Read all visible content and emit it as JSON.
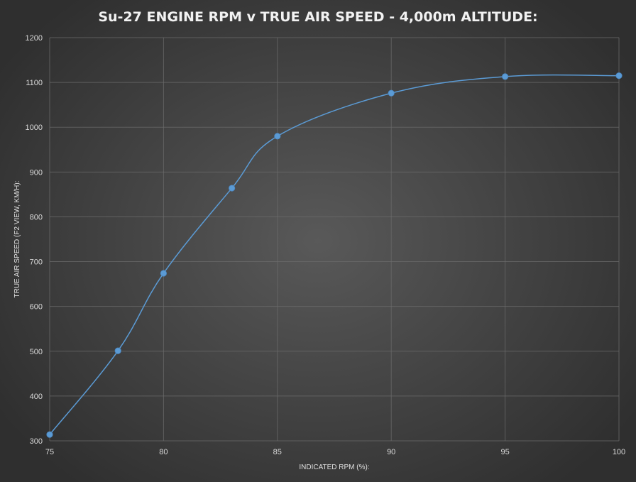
{
  "chart_data": {
    "type": "line",
    "title": "Su-27 ENGINE RPM v TRUE AIR SPEED - 4,000m ALTITUDE:",
    "xlabel": "INDICATED RPM (%):",
    "ylabel": "TRUE AIR SPEED (F2 VIEW, KM/H):",
    "xlim": [
      75,
      100
    ],
    "ylim": [
      300,
      1200
    ],
    "x_ticks": [
      75,
      80,
      85,
      90,
      95,
      100
    ],
    "y_ticks": [
      300,
      400,
      500,
      600,
      700,
      800,
      900,
      1000,
      1100,
      1200
    ],
    "grid": true,
    "smooth": true,
    "series": [
      {
        "x": [
          75,
          78,
          80,
          83,
          85,
          90,
          95,
          100
        ],
        "values": [
          314,
          501,
          674,
          864,
          980,
          1076,
          1113,
          1115
        ]
      }
    ],
    "colors": {
      "series": "#5b9bd5",
      "grid": "#6b6b6b",
      "text": "#d9d9d9"
    }
  }
}
